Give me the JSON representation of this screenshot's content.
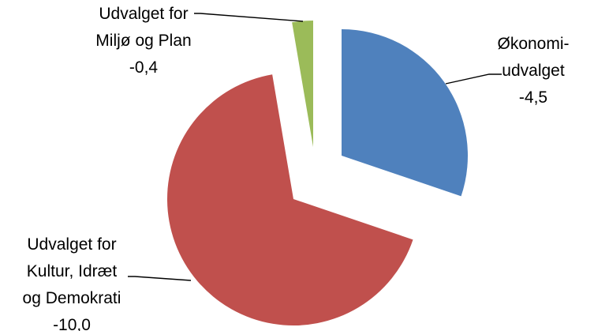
{
  "chart_data": {
    "type": "pie",
    "exploded": true,
    "slices": [
      {
        "label_lines": [
          "Økonomi-",
          "udvalget"
        ],
        "value_text": "-4,5",
        "value": -4.5,
        "color": "#4F81BD"
      },
      {
        "label_lines": [
          "Udvalget for",
          "Kultur, Idræt",
          "og Demokrati"
        ],
        "value_text": "-10,0",
        "value": -10.0,
        "color": "#C0504D"
      },
      {
        "label_lines": [
          "Udvalget for",
          "Miljø og Plan"
        ],
        "value_text": "-0,4",
        "value": -0.4,
        "color": "#9BBB59"
      }
    ]
  }
}
